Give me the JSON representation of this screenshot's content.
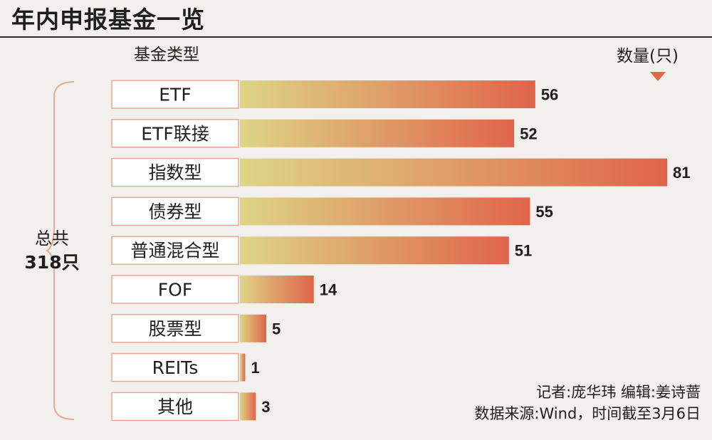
{
  "header": {
    "title": "年内申报基金一览",
    "category_label": "基金类型",
    "count_label": "数量(只)"
  },
  "total": {
    "label": "总共",
    "value": "318只"
  },
  "credits": {
    "reporter": "记者:庞华玮  编辑:姜诗蔷",
    "source": "数据来源:Wind，时间截至3月6日"
  },
  "colors": {
    "bar_start": "#ded585",
    "bar_end": "#e0644a",
    "label_border": "#e9a893"
  },
  "chart_data": {
    "type": "bar",
    "orientation": "horizontal",
    "categories": [
      "ETF",
      "ETF联接",
      "指数型",
      "债券型",
      "普通混合型",
      "FOF",
      "股票型",
      "REITs",
      "其他"
    ],
    "values": [
      56,
      52,
      81,
      55,
      51,
      14,
      5,
      1,
      3
    ],
    "title": "年内申报基金一览",
    "xlabel": "数量(只)",
    "ylabel": "基金类型",
    "xlim": [
      0,
      81
    ]
  }
}
